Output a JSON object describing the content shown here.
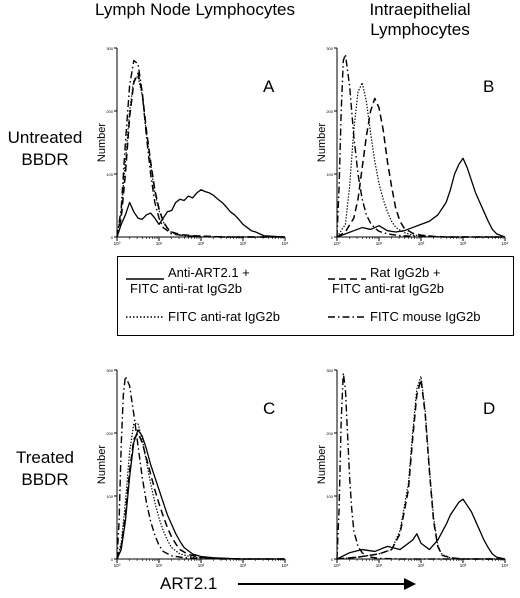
{
  "headers": {
    "lymph_node": "Lymph Node Lymphocytes",
    "intraepithelial": "Intraepithelial Lymphocytes"
  },
  "row_labels": {
    "untreated": "Untreated BBDR",
    "treated": "Treated BBDR"
  },
  "xaxis_label": "ART2.1",
  "legend": [
    {
      "label_line1": "Anti-ART2.1 +",
      "label_line2": "FITC anti-rat IgG2b",
      "style": "solid"
    },
    {
      "label_line1": "Rat IgG2b +",
      "label_line2": "FITC anti-rat IgG2b",
      "style": "dashed"
    },
    {
      "label_line1": "FITC anti-rat IgG2b",
      "label_line2": "",
      "style": "dotted"
    },
    {
      "label_line1": "FITC mouse IgG2b",
      "label_line2": "",
      "style": "dashdot"
    }
  ],
  "chart_data": [
    {
      "type": "line",
      "panel": "A",
      "ylabel": "Number",
      "x_log_range": [
        0,
        4
      ],
      "xticks": [
        "10⁰",
        "10¹",
        "10²",
        "10³",
        "10⁴"
      ],
      "ylim": [
        0,
        300
      ],
      "yticks": [
        "0",
        "100",
        "200",
        "300"
      ],
      "series": [
        {
          "style": "solid",
          "x": [
            0.0,
            0.1,
            0.2,
            0.3,
            0.4,
            0.5,
            0.6,
            0.7,
            0.8,
            0.9,
            1.0,
            1.1,
            1.2,
            1.3,
            1.4,
            1.5,
            1.6,
            1.7,
            1.8,
            1.9,
            2.0,
            2.1,
            2.2,
            2.3,
            2.4,
            2.5,
            2.6,
            2.7,
            2.8,
            2.9,
            3.0,
            3.1,
            3.2,
            3.3,
            3.4,
            3.5,
            4.0
          ],
          "y": [
            0,
            20,
            35,
            55,
            40,
            30,
            28,
            35,
            38,
            30,
            20,
            30,
            40,
            42,
            55,
            60,
            58,
            65,
            62,
            70,
            75,
            72,
            70,
            66,
            60,
            55,
            48,
            40,
            35,
            28,
            20,
            15,
            10,
            8,
            5,
            2,
            0
          ]
        },
        {
          "style": "dashed",
          "x": [
            0.0,
            0.1,
            0.2,
            0.3,
            0.4,
            0.5,
            0.6,
            0.7,
            0.8,
            0.9,
            1.0,
            1.1,
            1.2,
            1.3,
            1.5,
            1.8,
            2.2,
            2.6,
            3.0,
            4.0
          ],
          "y": [
            0,
            30,
            100,
            190,
            245,
            260,
            230,
            170,
            120,
            75,
            45,
            25,
            14,
            8,
            4,
            2,
            1,
            0,
            0,
            0
          ]
        },
        {
          "style": "dotted",
          "x": [
            0.0,
            0.1,
            0.2,
            0.3,
            0.4,
            0.5,
            0.6,
            0.7,
            0.8,
            0.9,
            1.0,
            1.1,
            1.2,
            1.3,
            1.5,
            1.8,
            2.2,
            2.6,
            3.0,
            4.0
          ],
          "y": [
            0,
            40,
            120,
            200,
            250,
            255,
            225,
            165,
            115,
            70,
            42,
            24,
            13,
            7,
            3,
            1,
            0,
            0,
            0,
            0
          ]
        },
        {
          "style": "dashdot",
          "x": [
            0.0,
            0.1,
            0.2,
            0.3,
            0.4,
            0.5,
            0.6,
            0.7,
            0.8,
            0.9,
            1.0,
            1.1,
            1.3,
            1.6,
            2.0,
            2.5,
            3.0,
            4.0
          ],
          "y": [
            0,
            45,
            150,
            240,
            280,
            275,
            230,
            160,
            100,
            55,
            30,
            15,
            5,
            2,
            1,
            0,
            0,
            0
          ]
        }
      ]
    },
    {
      "type": "line",
      "panel": "B",
      "ylabel": "Number",
      "x_log_range": [
        0,
        4
      ],
      "xticks": [
        "10⁰",
        "10¹",
        "10²",
        "10³",
        "10⁴"
      ],
      "ylim": [
        0,
        300
      ],
      "yticks": [
        "0",
        "100",
        "200",
        "300"
      ],
      "series": [
        {
          "style": "solid",
          "x": [
            0.0,
            0.2,
            0.4,
            0.6,
            0.8,
            1.0,
            1.2,
            1.4,
            1.6,
            1.8,
            2.0,
            2.2,
            2.4,
            2.6,
            2.7,
            2.8,
            2.9,
            3.0,
            3.1,
            3.2,
            3.3,
            3.4,
            3.5,
            3.6,
            3.7,
            3.8,
            4.0
          ],
          "y": [
            0,
            5,
            10,
            15,
            12,
            18,
            10,
            8,
            10,
            15,
            20,
            25,
            35,
            55,
            75,
            100,
            115,
            125,
            110,
            90,
            70,
            55,
            40,
            25,
            12,
            5,
            0
          ]
        },
        {
          "style": "dashed",
          "x": [
            0.0,
            0.2,
            0.4,
            0.5,
            0.6,
            0.7,
            0.8,
            0.9,
            1.0,
            1.1,
            1.2,
            1.3,
            1.4,
            1.5,
            1.6,
            1.8,
            2.0,
            2.3,
            2.6,
            4.0
          ],
          "y": [
            0,
            8,
            30,
            60,
            110,
            160,
            200,
            220,
            205,
            170,
            120,
            80,
            45,
            25,
            14,
            6,
            3,
            1,
            0,
            0
          ]
        },
        {
          "style": "dotted",
          "x": [
            0.0,
            0.2,
            0.3,
            0.4,
            0.5,
            0.6,
            0.7,
            0.8,
            0.9,
            1.0,
            1.1,
            1.2,
            1.3,
            1.4,
            1.6,
            1.8,
            2.2,
            2.6,
            4.0
          ],
          "y": [
            0,
            20,
            80,
            170,
            230,
            245,
            215,
            165,
            120,
            85,
            60,
            40,
            25,
            15,
            7,
            3,
            1,
            0,
            0
          ]
        },
        {
          "style": "dashdot",
          "x": [
            0.0,
            0.05,
            0.1,
            0.15,
            0.2,
            0.3,
            0.4,
            0.5,
            0.6,
            0.7,
            0.8,
            0.9,
            1.0,
            1.2,
            1.5,
            2.0,
            2.5,
            4.0
          ],
          "y": [
            0,
            80,
            200,
            280,
            290,
            240,
            160,
            100,
            60,
            35,
            22,
            14,
            9,
            5,
            2,
            1,
            0,
            0
          ]
        }
      ]
    },
    {
      "type": "line",
      "panel": "C",
      "ylabel": "Number",
      "x_log_range": [
        0,
        4
      ],
      "xticks": [
        "10⁰",
        "10¹",
        "10²",
        "10³",
        "10⁴"
      ],
      "ylim": [
        0,
        300
      ],
      "yticks": [
        "0",
        "100",
        "200",
        "300"
      ],
      "series": [
        {
          "style": "solid",
          "x": [
            0.0,
            0.1,
            0.2,
            0.3,
            0.4,
            0.5,
            0.6,
            0.7,
            0.8,
            0.9,
            1.0,
            1.1,
            1.2,
            1.3,
            1.4,
            1.5,
            1.6,
            1.8,
            2.0,
            2.3,
            2.6,
            3.0,
            4.0
          ],
          "y": [
            0,
            15,
            60,
            130,
            185,
            205,
            195,
            175,
            150,
            130,
            110,
            90,
            70,
            55,
            40,
            28,
            18,
            8,
            4,
            2,
            1,
            0,
            0
          ]
        },
        {
          "style": "dashed",
          "x": [
            0.0,
            0.1,
            0.2,
            0.3,
            0.4,
            0.5,
            0.6,
            0.7,
            0.8,
            0.9,
            1.0,
            1.1,
            1.2,
            1.3,
            1.4,
            1.5,
            1.7,
            2.0,
            2.4,
            3.0,
            4.0
          ],
          "y": [
            0,
            20,
            70,
            140,
            190,
            200,
            185,
            160,
            135,
            110,
            88,
            68,
            50,
            35,
            24,
            15,
            7,
            3,
            1,
            0,
            0
          ]
        },
        {
          "style": "dotted",
          "x": [
            0.0,
            0.1,
            0.2,
            0.3,
            0.4,
            0.5,
            0.6,
            0.7,
            0.8,
            0.9,
            1.0,
            1.1,
            1.2,
            1.3,
            1.5,
            1.8,
            2.2,
            2.6,
            4.0
          ],
          "y": [
            0,
            25,
            90,
            170,
            215,
            215,
            190,
            155,
            120,
            90,
            65,
            45,
            30,
            18,
            8,
            3,
            1,
            0,
            0
          ]
        },
        {
          "style": "dashdot",
          "x": [
            0.0,
            0.05,
            0.1,
            0.15,
            0.2,
            0.3,
            0.4,
            0.5,
            0.6,
            0.7,
            0.8,
            0.9,
            1.0,
            1.1,
            1.3,
            1.6,
            2.0,
            2.5,
            4.0
          ],
          "y": [
            0,
            60,
            180,
            260,
            290,
            275,
            230,
            180,
            130,
            90,
            60,
            38,
            22,
            12,
            5,
            2,
            1,
            0,
            0
          ]
        }
      ]
    },
    {
      "type": "line",
      "panel": "D",
      "ylabel": "Number",
      "x_log_range": [
        0,
        4
      ],
      "xticks": [
        "10⁰",
        "10¹",
        "10²",
        "10³",
        "10⁴"
      ],
      "ylim": [
        0,
        300
      ],
      "yticks": [
        "0",
        "100",
        "200",
        "300"
      ],
      "series": [
        {
          "style": "solid",
          "x": [
            0.0,
            0.3,
            0.6,
            0.9,
            1.2,
            1.5,
            1.8,
            1.9,
            2.0,
            2.2,
            2.4,
            2.6,
            2.7,
            2.8,
            2.9,
            3.0,
            3.1,
            3.2,
            3.3,
            3.4,
            3.5,
            3.6,
            3.7,
            3.8,
            4.0
          ],
          "y": [
            0,
            10,
            15,
            12,
            20,
            15,
            30,
            40,
            25,
            15,
            30,
            55,
            70,
            80,
            90,
            95,
            85,
            75,
            60,
            45,
            30,
            18,
            8,
            3,
            0
          ]
        },
        {
          "style": "dashed",
          "x": [
            0.0,
            0.5,
            1.0,
            1.3,
            1.5,
            1.7,
            1.8,
            1.9,
            2.0,
            2.1,
            2.2,
            2.3,
            2.4,
            2.5,
            2.7,
            3.0,
            4.0
          ],
          "y": [
            0,
            3,
            8,
            15,
            40,
            110,
            190,
            260,
            285,
            230,
            140,
            60,
            20,
            6,
            2,
            0,
            0
          ]
        },
        {
          "style": "dotted",
          "x": [
            0.0,
            0.5,
            1.0,
            1.3,
            1.5,
            1.7,
            1.8,
            1.9,
            2.0,
            2.1,
            2.2,
            2.3,
            2.4,
            2.5,
            2.7,
            3.0,
            4.0
          ],
          "y": [
            0,
            3,
            8,
            15,
            45,
            120,
            200,
            270,
            290,
            235,
            145,
            65,
            22,
            7,
            2,
            0,
            0
          ]
        },
        {
          "style": "dashdot",
          "x": [
            0.0,
            0.05,
            0.1,
            0.15,
            0.2,
            0.25,
            0.3,
            0.35,
            0.4,
            0.5,
            0.6,
            0.7,
            0.8,
            1.0,
            1.5,
            2.0,
            4.0
          ],
          "y": [
            0,
            80,
            220,
            295,
            270,
            200,
            130,
            80,
            45,
            20,
            10,
            5,
            3,
            1,
            0,
            0,
            0
          ]
        }
      ]
    }
  ]
}
